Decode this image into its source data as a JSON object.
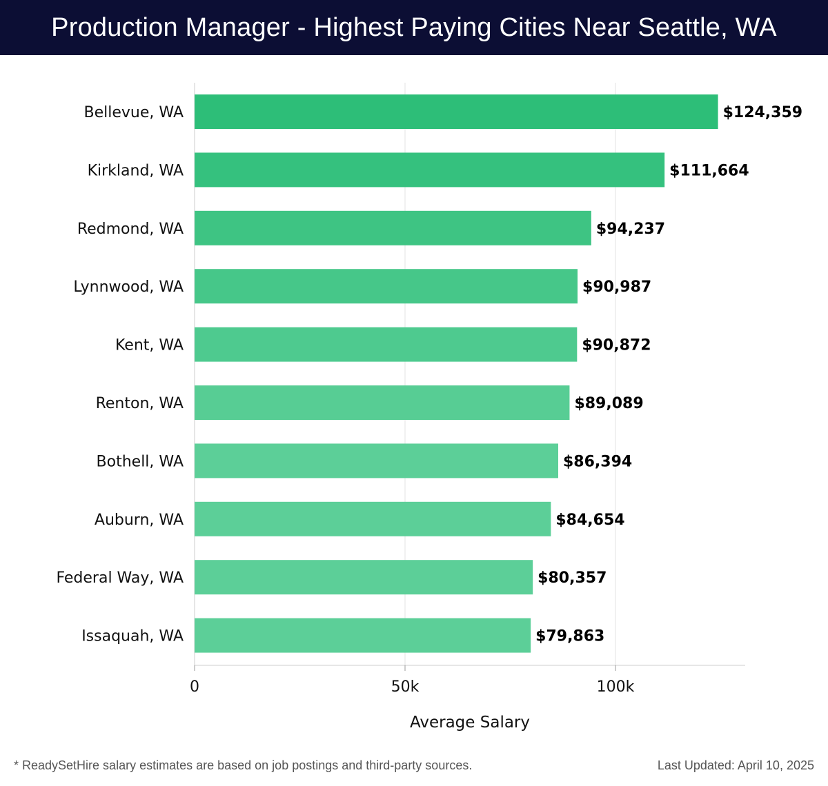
{
  "header": {
    "title": "Production Manager - Highest Paying Cities Near Seattle, WA"
  },
  "chart_data": {
    "type": "bar",
    "orientation": "horizontal",
    "title": "Production Manager - Highest Paying Cities Near Seattle, WA",
    "xlabel": "Average Salary",
    "ylabel": "",
    "categories": [
      "Bellevue, WA",
      "Kirkland, WA",
      "Redmond, WA",
      "Lynnwood, WA",
      "Kent, WA",
      "Renton, WA",
      "Bothell, WA",
      "Auburn, WA",
      "Federal Way, WA",
      "Issaquah, WA"
    ],
    "values": [
      124359,
      111664,
      94237,
      90987,
      90872,
      89089,
      86394,
      84654,
      80357,
      79863
    ],
    "value_labels": [
      "$124,359",
      "$111,664",
      "$94,237",
      "$90,987",
      "$90,872",
      "$89,089",
      "$86,394",
      "$84,654",
      "$80,357",
      "$79,863"
    ],
    "xlim": [
      0,
      131000
    ],
    "xticks": [
      0,
      50000,
      100000
    ],
    "xtick_labels": [
      "0",
      "50k",
      "100k"
    ],
    "grid": true,
    "colors": {
      "bar_top": "#2dbe78",
      "bar_low": "#5ccf98",
      "grid": "#e3e3e3",
      "axis": "#cccccc",
      "text": "#111111",
      "label": "#000000"
    }
  },
  "footer": {
    "note": "* ReadySetHire salary estimates are based on job postings and third-party sources.",
    "updated": "Last Updated: April 10, 2025"
  }
}
